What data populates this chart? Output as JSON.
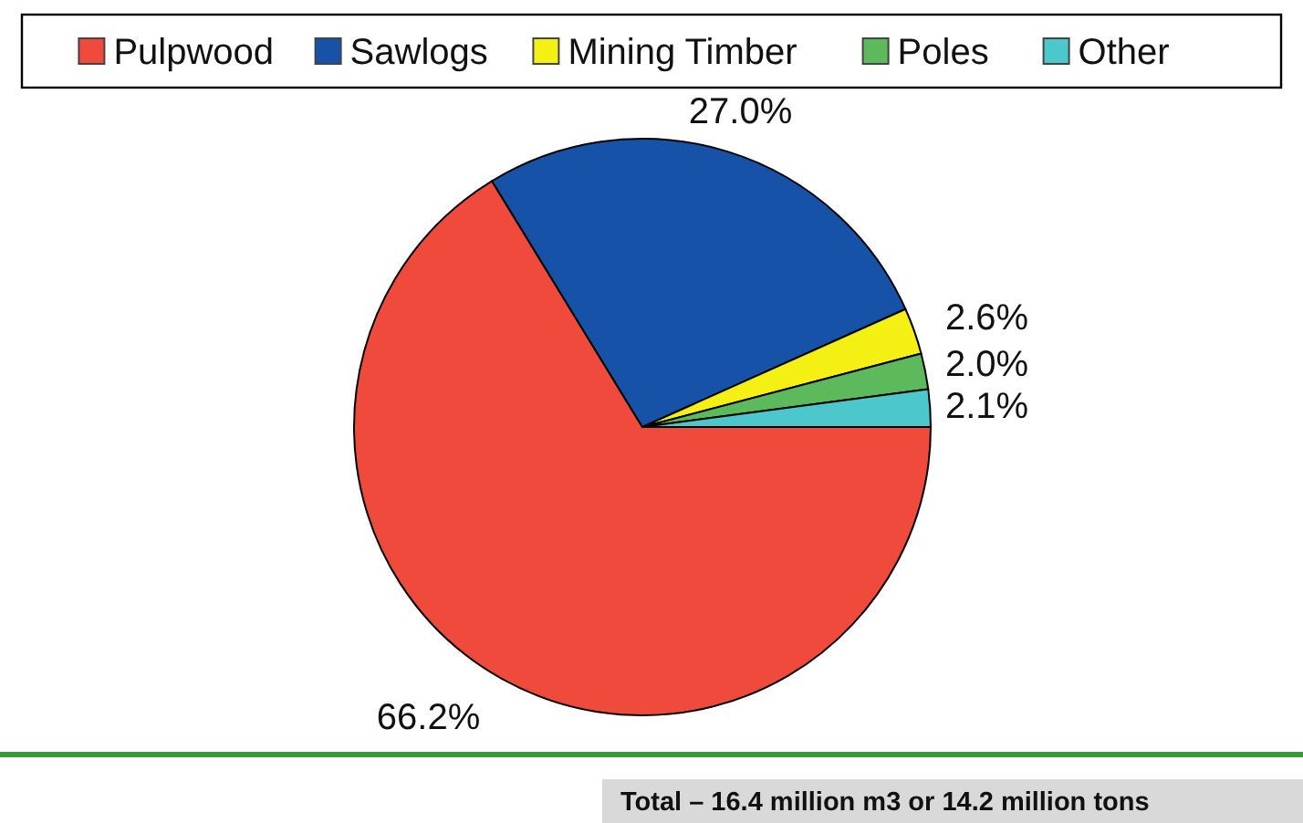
{
  "chart_data": {
    "type": "pie",
    "categories": [
      "Pulpwood",
      "Sawlogs",
      "Mining Timber",
      "Poles",
      "Other"
    ],
    "values": [
      66.2,
      27.0,
      2.6,
      2.0,
      2.1
    ],
    "colors": [
      "#ef4a3c",
      "#1652a8",
      "#f5f014",
      "#5cba5c",
      "#4cc8cc"
    ],
    "value_labels": [
      "66.2%",
      "27.0%",
      "2.6%",
      "2.0%",
      "2.1%"
    ],
    "legend": "top",
    "annotations": [
      "Total – 16.4 million m3 or 14.2 million tons"
    ]
  }
}
